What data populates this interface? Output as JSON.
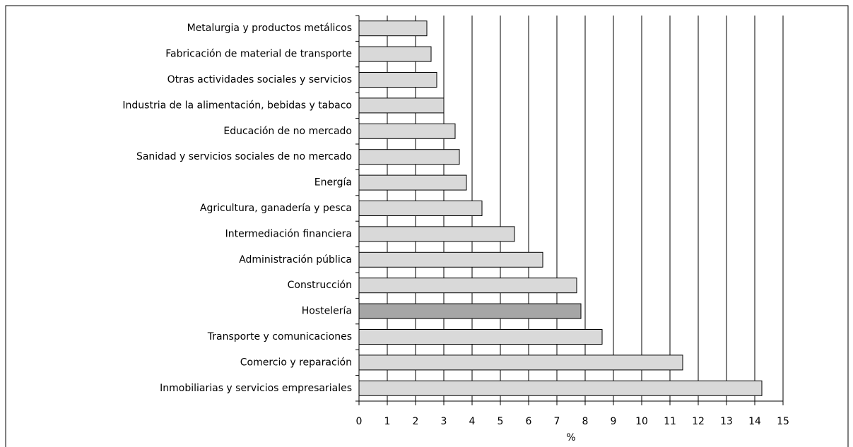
{
  "chart_data": {
    "type": "barh",
    "xlabel": "%",
    "categories": [
      "Metalurgia y productos metálicos",
      "Fabricación de material de transporte",
      "Otras actividades sociales y servicios",
      "Industria de la alimentación, bebidas y tabaco",
      "Educación de no mercado",
      "Sanidad y servicios sociales de no mercado",
      "Energía",
      "Agricultura, ganadería y pesca",
      "Intermediación financiera",
      "Administración pública",
      "Construcción",
      "Hostelería",
      "Transporte y comunicaciones",
      "Comercio y reparación",
      "Inmobiliarias y servicios empresariales"
    ],
    "values": [
      2.4,
      2.55,
      2.75,
      3.0,
      3.4,
      3.55,
      3.8,
      4.35,
      5.5,
      6.5,
      7.7,
      7.85,
      8.6,
      11.45,
      14.25
    ],
    "colors": [
      "#d9d9d9",
      "#d9d9d9",
      "#d9d9d9",
      "#d9d9d9",
      "#d9d9d9",
      "#d9d9d9",
      "#d9d9d9",
      "#d9d9d9",
      "#d9d9d9",
      "#d9d9d9",
      "#d9d9d9",
      "#a6a6a6",
      "#d9d9d9",
      "#d9d9d9",
      "#d9d9d9"
    ],
    "xlim": [
      0,
      15
    ],
    "xticks": [
      0,
      1,
      2,
      3,
      4,
      5,
      6,
      7,
      8,
      9,
      10,
      11,
      12,
      13,
      14,
      15
    ],
    "grid": true
  }
}
